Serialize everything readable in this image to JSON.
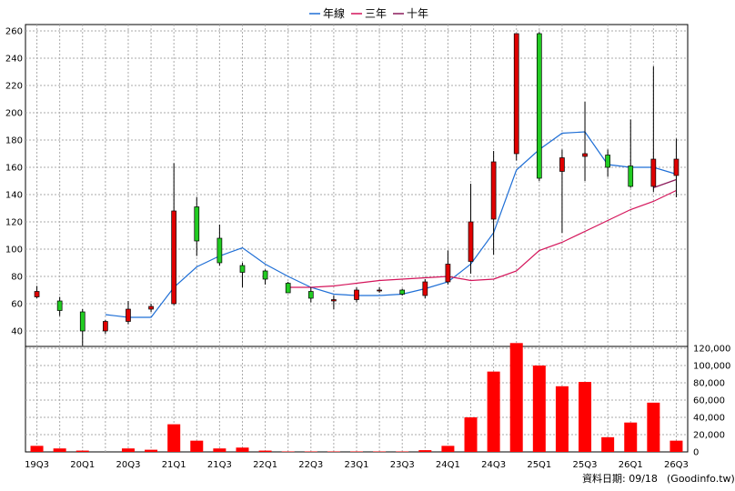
{
  "chart_data": {
    "type": "candlestick",
    "legend": [
      {
        "name": "年線",
        "color": "#1f6fd6"
      },
      {
        "name": "三年",
        "color": "#d4145a"
      },
      {
        "name": "十年",
        "color": "#8b1a5a"
      }
    ],
    "colors": {
      "up": "#e00000",
      "down": "#22cc22",
      "volume": "#ff0000",
      "grid": "#aaaaaa"
    },
    "categories": [
      "19Q3",
      "19Q4",
      "20Q1",
      "20Q2",
      "20Q3",
      "20Q4",
      "21Q1",
      "21Q2",
      "21Q3",
      "21Q4",
      "22Q1",
      "22Q2",
      "22Q3",
      "22Q4",
      "23Q1",
      "23Q2",
      "23Q3",
      "23Q4",
      "24Q1",
      "24Q2",
      "24Q3",
      "24Q4",
      "25Q1",
      "25Q2",
      "25Q3",
      "25Q4",
      "26Q1",
      "26Q2",
      "26Q3"
    ],
    "x_tick_labels": [
      "19Q3",
      "20Q1",
      "20Q3",
      "21Q1",
      "21Q3",
      "22Q1",
      "22Q3",
      "23Q1",
      "23Q3",
      "24Q1",
      "24Q3",
      "25Q1",
      "25Q3",
      "26Q1",
      "26Q3"
    ],
    "candles": [
      {
        "o": 65,
        "h": 73,
        "l": 64,
        "c": 69
      },
      {
        "o": 62,
        "h": 65,
        "l": 51,
        "c": 55
      },
      {
        "o": 54,
        "h": 56,
        "l": 29,
        "c": 40
      },
      {
        "o": 40,
        "h": 48,
        "l": 38,
        "c": 47
      },
      {
        "o": 47,
        "h": 62,
        "l": 45,
        "c": 56
      },
      {
        "o": 56,
        "h": 60,
        "l": 54,
        "c": 58
      },
      {
        "o": 60,
        "h": 163,
        "l": 59,
        "c": 128
      },
      {
        "o": 131,
        "h": 138,
        "l": 95,
        "c": 106
      },
      {
        "o": 108,
        "h": 118,
        "l": 88,
        "c": 90
      },
      {
        "o": 88,
        "h": 90,
        "l": 72,
        "c": 83
      },
      {
        "o": 84,
        "h": 85,
        "l": 74,
        "c": 78
      },
      {
        "o": 75,
        "h": 76,
        "l": 68,
        "c": 68
      },
      {
        "o": 69,
        "h": 72,
        "l": 61,
        "c": 64
      },
      {
        "o": 62,
        "h": 66,
        "l": 56,
        "c": 63
      },
      {
        "o": 63,
        "h": 72,
        "l": 61,
        "c": 70
      },
      {
        "o": 70,
        "h": 72,
        "l": 68,
        "c": 70
      },
      {
        "o": 70,
        "h": 71,
        "l": 66,
        "c": 67
      },
      {
        "o": 66,
        "h": 78,
        "l": 64,
        "c": 76
      },
      {
        "o": 76,
        "h": 99,
        "l": 74,
        "c": 89
      },
      {
        "o": 91,
        "h": 148,
        "l": 82,
        "c": 120
      },
      {
        "o": 122,
        "h": 172,
        "l": 96,
        "c": 164
      },
      {
        "o": 170,
        "h": 258,
        "l": 165,
        "c": 258
      },
      {
        "o": 258,
        "h": 259,
        "l": 150,
        "c": 152
      },
      {
        "o": 157,
        "h": 173,
        "l": 112,
        "c": 167
      },
      {
        "o": 168,
        "h": 208,
        "l": 150,
        "c": 170
      },
      {
        "o": 169,
        "h": 173,
        "l": 153,
        "c": 160
      },
      {
        "o": 161,
        "h": 195,
        "l": 145,
        "c": 146
      },
      {
        "o": 146,
        "h": 234,
        "l": 142,
        "c": 166
      },
      {
        "o": 154,
        "h": 181,
        "l": 138,
        "c": 166
      }
    ],
    "ma_year": [
      null,
      null,
      null,
      52,
      50,
      50,
      72,
      87,
      95,
      101,
      89,
      80,
      72,
      67,
      66,
      66,
      67,
      71,
      76,
      89,
      112,
      158,
      173,
      185,
      186,
      162,
      160,
      160,
      155
    ],
    "ma_3year": [
      null,
      null,
      null,
      null,
      null,
      null,
      null,
      null,
      null,
      null,
      null,
      72,
      72,
      73,
      75,
      77,
      78,
      79,
      80,
      77,
      78,
      84,
      99,
      105,
      113,
      121,
      129,
      135,
      143
    ],
    "ma_10year": [
      null,
      null,
      null,
      null,
      null,
      null,
      null,
      null,
      null,
      null,
      null,
      null,
      null,
      null,
      null,
      null,
      null,
      null,
      null,
      null,
      null,
      null,
      null,
      null,
      null,
      null,
      null,
      145,
      151
    ],
    "volume": [
      7000,
      4000,
      1500,
      0,
      4000,
      2500,
      32000,
      13000,
      4000,
      5000,
      1500,
      500,
      500,
      500,
      500,
      500,
      500,
      2000,
      7000,
      40000,
      93000,
      126000,
      100000,
      76000,
      81000,
      17000,
      34000,
      57000,
      13000
    ],
    "price_axis": {
      "min": 40,
      "max": 260,
      "ticks": [
        40,
        60,
        80,
        100,
        120,
        140,
        160,
        180,
        200,
        220,
        240,
        260
      ]
    },
    "volume_axis": {
      "min": 0,
      "max": 120000,
      "ticks": [
        "0",
        "20,000",
        "40,000",
        "60,000",
        "80,000",
        "100,000",
        "120,000"
      ]
    }
  },
  "footer": {
    "label": "資料日期: 09/18",
    "source": "(Goodinfo.tw)"
  }
}
